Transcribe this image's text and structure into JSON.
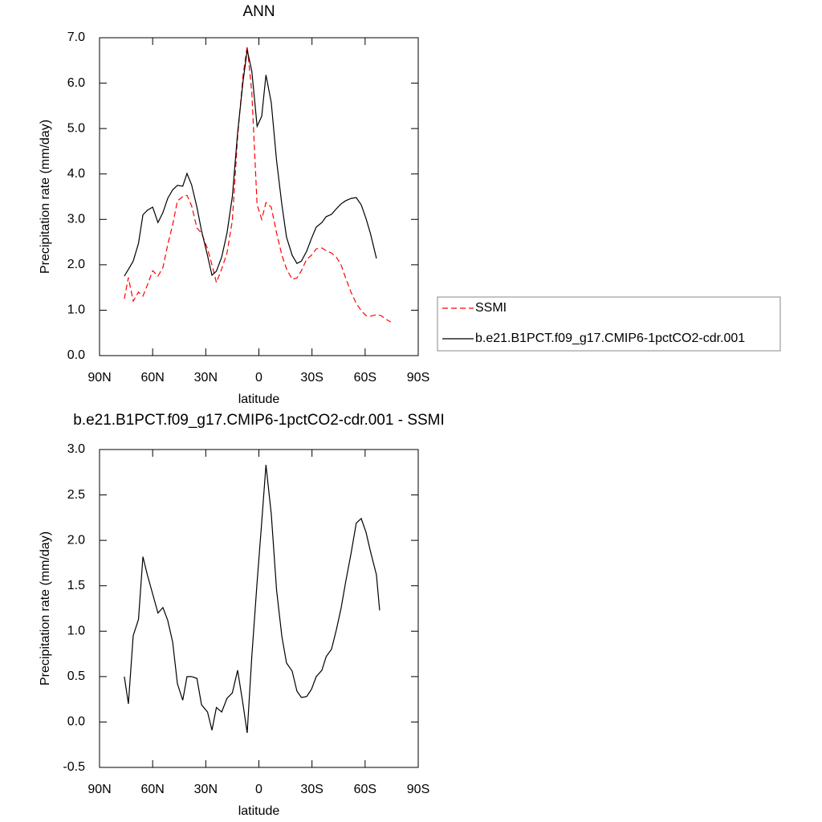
{
  "chart_data": [
    {
      "type": "line",
      "title": "ANN",
      "xlabel": "latitude",
      "ylabel": "Precipitation rate (mm/day)",
      "x": [
        76,
        73.7,
        71,
        68,
        65.5,
        63,
        60,
        57,
        54.2,
        51.5,
        48.7,
        46,
        43,
        40.6,
        38,
        35,
        32.4,
        29,
        26.5,
        24,
        21,
        18,
        15,
        12,
        9,
        6.6,
        4,
        1,
        -1.6,
        -4,
        -7,
        -10,
        -13,
        -15.6,
        -18.8,
        -21.5,
        -24,
        -27,
        -29.7,
        -32.4,
        -35.6,
        -38,
        -41,
        -43.7,
        -46.4,
        -49,
        -52,
        -55,
        -57.8,
        -60.5,
        -63,
        -66.4,
        -69,
        -71.8,
        -74.5
      ],
      "series": [
        {
          "name": "SSMI",
          "color": "#ff0000",
          "linestyle": "dashed",
          "values": [
            1.25,
            1.72,
            1.2,
            1.4,
            1.31,
            1.55,
            1.87,
            1.75,
            1.94,
            2.44,
            2.88,
            3.41,
            3.5,
            3.53,
            3.3,
            2.81,
            2.7,
            2.35,
            2.0,
            1.61,
            1.91,
            2.26,
            2.97,
            4.82,
            6.15,
            6.82,
            5.8,
            3.32,
            3.0,
            3.37,
            3.27,
            2.7,
            2.21,
            1.91,
            1.68,
            1.71,
            1.87,
            2.12,
            2.21,
            2.35,
            2.37,
            2.31,
            2.26,
            2.17,
            2.0,
            1.71,
            1.4,
            1.15,
            0.99,
            0.88,
            0.87,
            0.9,
            0.88,
            0.8,
            0.74
          ]
        },
        {
          "name": "b.e21.B1PCT.f09_g17.CMIP6-1pctCO2-cdr.001",
          "color": "#000000",
          "linestyle": "solid",
          "values": [
            1.75,
            1.9,
            2.08,
            2.47,
            3.1,
            3.2,
            3.27,
            2.93,
            3.15,
            3.46,
            3.65,
            3.75,
            3.73,
            4.01,
            3.76,
            3.27,
            2.75,
            2.2,
            1.77,
            1.86,
            2.17,
            2.7,
            3.5,
            4.91,
            6.02,
            6.73,
            6.27,
            5.05,
            5.27,
            6.18,
            5.57,
            4.29,
            3.32,
            2.61,
            2.21,
            2.03,
            2.08,
            2.3,
            2.58,
            2.83,
            2.93,
            3.06,
            3.11,
            3.23,
            3.34,
            3.41,
            3.46,
            3.48,
            3.32,
            3.02,
            2.69,
            2.14,
            null,
            null,
            null
          ]
        }
      ],
      "xlim": [
        90,
        -90
      ],
      "xticks": [
        {
          "value": 90,
          "label": "90N"
        },
        {
          "value": 60,
          "label": "60N"
        },
        {
          "value": 30,
          "label": "30N"
        },
        0,
        {
          "value": -30,
          "label": "30S"
        },
        {
          "value": -60,
          "label": "60S"
        },
        {
          "value": -90,
          "label": "90S"
        }
      ],
      "ylim": [
        0,
        7
      ],
      "yticks": [
        {
          "value": 0,
          "label": "0.0"
        },
        {
          "value": 1,
          "label": "1.0"
        },
        {
          "value": 2,
          "label": "2.0"
        },
        {
          "value": 3,
          "label": "3.0"
        },
        {
          "value": 4,
          "label": "4.0"
        },
        {
          "value": 5,
          "label": "5.0"
        },
        {
          "value": 6,
          "label": "6.0"
        },
        {
          "value": 7,
          "label": "7.0"
        }
      ],
      "legend": "right"
    },
    {
      "type": "line",
      "title": "b.e21.B1PCT.f09_g17.CMIP6-1pctCO2-cdr.001 - SSMI",
      "xlabel": "latitude",
      "ylabel": "Precipitation rate (mm/day)",
      "x": [
        76,
        73.7,
        71,
        68,
        65.5,
        63,
        60,
        57,
        54.2,
        51.5,
        48.7,
        46,
        43,
        40.6,
        38,
        35,
        32.4,
        29,
        26.5,
        24,
        21,
        18,
        15,
        12,
        9,
        6.6,
        4,
        1,
        -1.6,
        -4,
        -7,
        -10,
        -13,
        -15.6,
        -18.8,
        -21.5,
        -24,
        -27,
        -29.7,
        -32.4,
        -35.6,
        -38,
        -41,
        -43.7,
        -46.4,
        -49,
        -52,
        -55,
        -57.8,
        -60.5,
        -63,
        -66.4,
        -68.2
      ],
      "values": [
        0.5,
        0.2,
        0.95,
        1.13,
        1.82,
        1.62,
        1.41,
        1.2,
        1.26,
        1.12,
        0.88,
        0.42,
        0.24,
        0.5,
        0.5,
        0.48,
        0.19,
        0.11,
        -0.09,
        0.16,
        0.11,
        0.26,
        0.32,
        0.57,
        0.2,
        -0.12,
        0.72,
        1.54,
        2.2,
        2.83,
        2.29,
        1.45,
        0.94,
        0.65,
        0.56,
        0.34,
        0.27,
        0.28,
        0.36,
        0.5,
        0.57,
        0.72,
        0.8,
        1.01,
        1.25,
        1.54,
        1.85,
        2.19,
        2.24,
        2.09,
        1.88,
        1.62,
        1.23
      ],
      "color": "#000000",
      "xlim": [
        90,
        -90
      ],
      "xticks": [
        {
          "value": 90,
          "label": "90N"
        },
        {
          "value": 60,
          "label": "60N"
        },
        {
          "value": 30,
          "label": "30N"
        },
        0,
        {
          "value": -30,
          "label": "30S"
        },
        {
          "value": -60,
          "label": "60S"
        },
        {
          "value": -90,
          "label": "90S"
        }
      ],
      "ylim": [
        -0.5,
        3
      ],
      "yticks": [
        -0.5,
        {
          "value": 0,
          "label": "0.0"
        },
        0.5,
        {
          "value": 1,
          "label": "1.0"
        },
        1.5,
        {
          "value": 2,
          "label": "2.0"
        },
        2.5,
        {
          "value": 3,
          "label": "3.0"
        }
      ]
    }
  ]
}
